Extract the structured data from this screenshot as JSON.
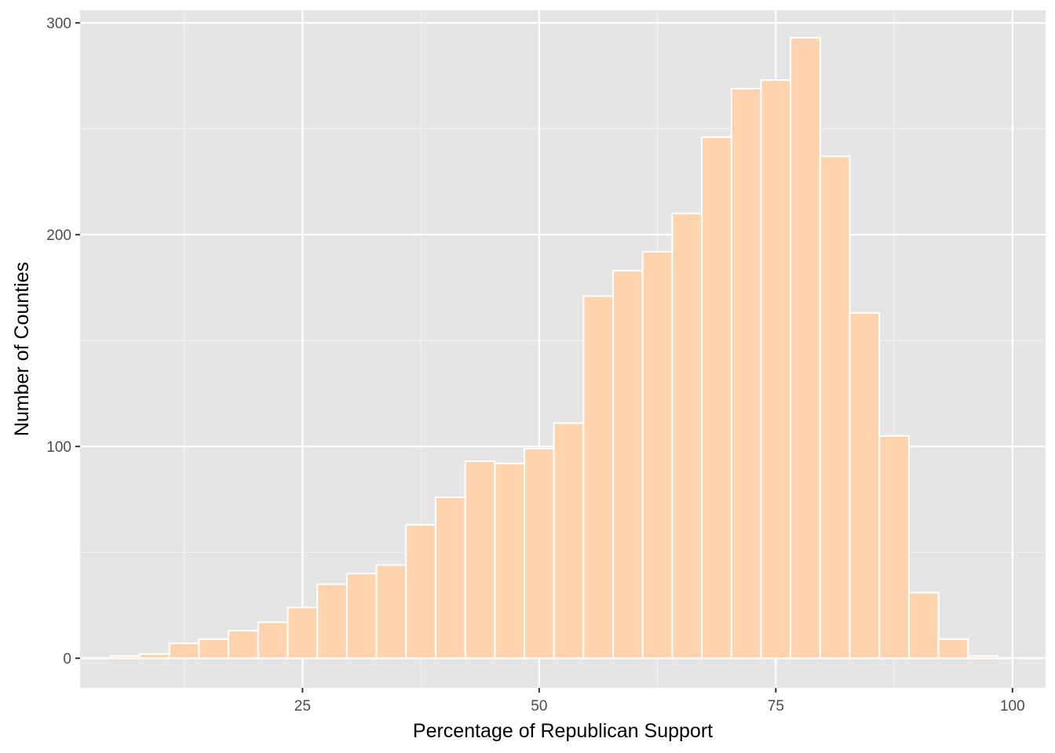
{
  "chart_data": {
    "type": "bar",
    "xlabel": "Percentage of Republican Support",
    "ylabel": "Number of Counties",
    "xlim": [
      1.5,
      103.5
    ],
    "ylim": [
      -14,
      306
    ],
    "x_ticks": [
      25,
      50,
      75,
      100
    ],
    "x_tick_labels": [
      "25",
      "50",
      "75",
      "100"
    ],
    "y_ticks": [
      0,
      100,
      200,
      300
    ],
    "y_tick_labels": [
      "0",
      "100",
      "200",
      "300"
    ],
    "x_minor_ticks": [
      12.5,
      37.5,
      62.5,
      87.5
    ],
    "y_minor_ticks": [
      50,
      150,
      250
    ],
    "grid": true,
    "bin_width": 3.125,
    "bins": [
      {
        "center": 6.25,
        "count": 1
      },
      {
        "center": 9.375,
        "count": 2
      },
      {
        "center": 12.5,
        "count": 7
      },
      {
        "center": 15.625,
        "count": 9
      },
      {
        "center": 18.75,
        "count": 13
      },
      {
        "center": 21.875,
        "count": 17
      },
      {
        "center": 25.0,
        "count": 24
      },
      {
        "center": 28.125,
        "count": 35
      },
      {
        "center": 31.25,
        "count": 40
      },
      {
        "center": 34.375,
        "count": 44
      },
      {
        "center": 37.5,
        "count": 63
      },
      {
        "center": 40.625,
        "count": 76
      },
      {
        "center": 43.75,
        "count": 93
      },
      {
        "center": 46.875,
        "count": 92
      },
      {
        "center": 50.0,
        "count": 99
      },
      {
        "center": 53.125,
        "count": 111
      },
      {
        "center": 56.25,
        "count": 171
      },
      {
        "center": 59.375,
        "count": 183
      },
      {
        "center": 62.5,
        "count": 192
      },
      {
        "center": 65.625,
        "count": 210
      },
      {
        "center": 68.75,
        "count": 246
      },
      {
        "center": 71.875,
        "count": 269
      },
      {
        "center": 75.0,
        "count": 273
      },
      {
        "center": 78.125,
        "count": 293
      },
      {
        "center": 81.25,
        "count": 237
      },
      {
        "center": 84.375,
        "count": 163
      },
      {
        "center": 87.5,
        "count": 105
      },
      {
        "center": 90.625,
        "count": 31
      },
      {
        "center": 93.75,
        "count": 9
      },
      {
        "center": 96.875,
        "count": 1
      }
    ],
    "colors": {
      "panel_background": "#e5e5e5",
      "grid_major": "#ffffff",
      "grid_minor": "#f2f2f2",
      "bar_fill": "#fed3ae",
      "bar_outline": "#ffffff",
      "tick_mark": "#333333"
    }
  }
}
